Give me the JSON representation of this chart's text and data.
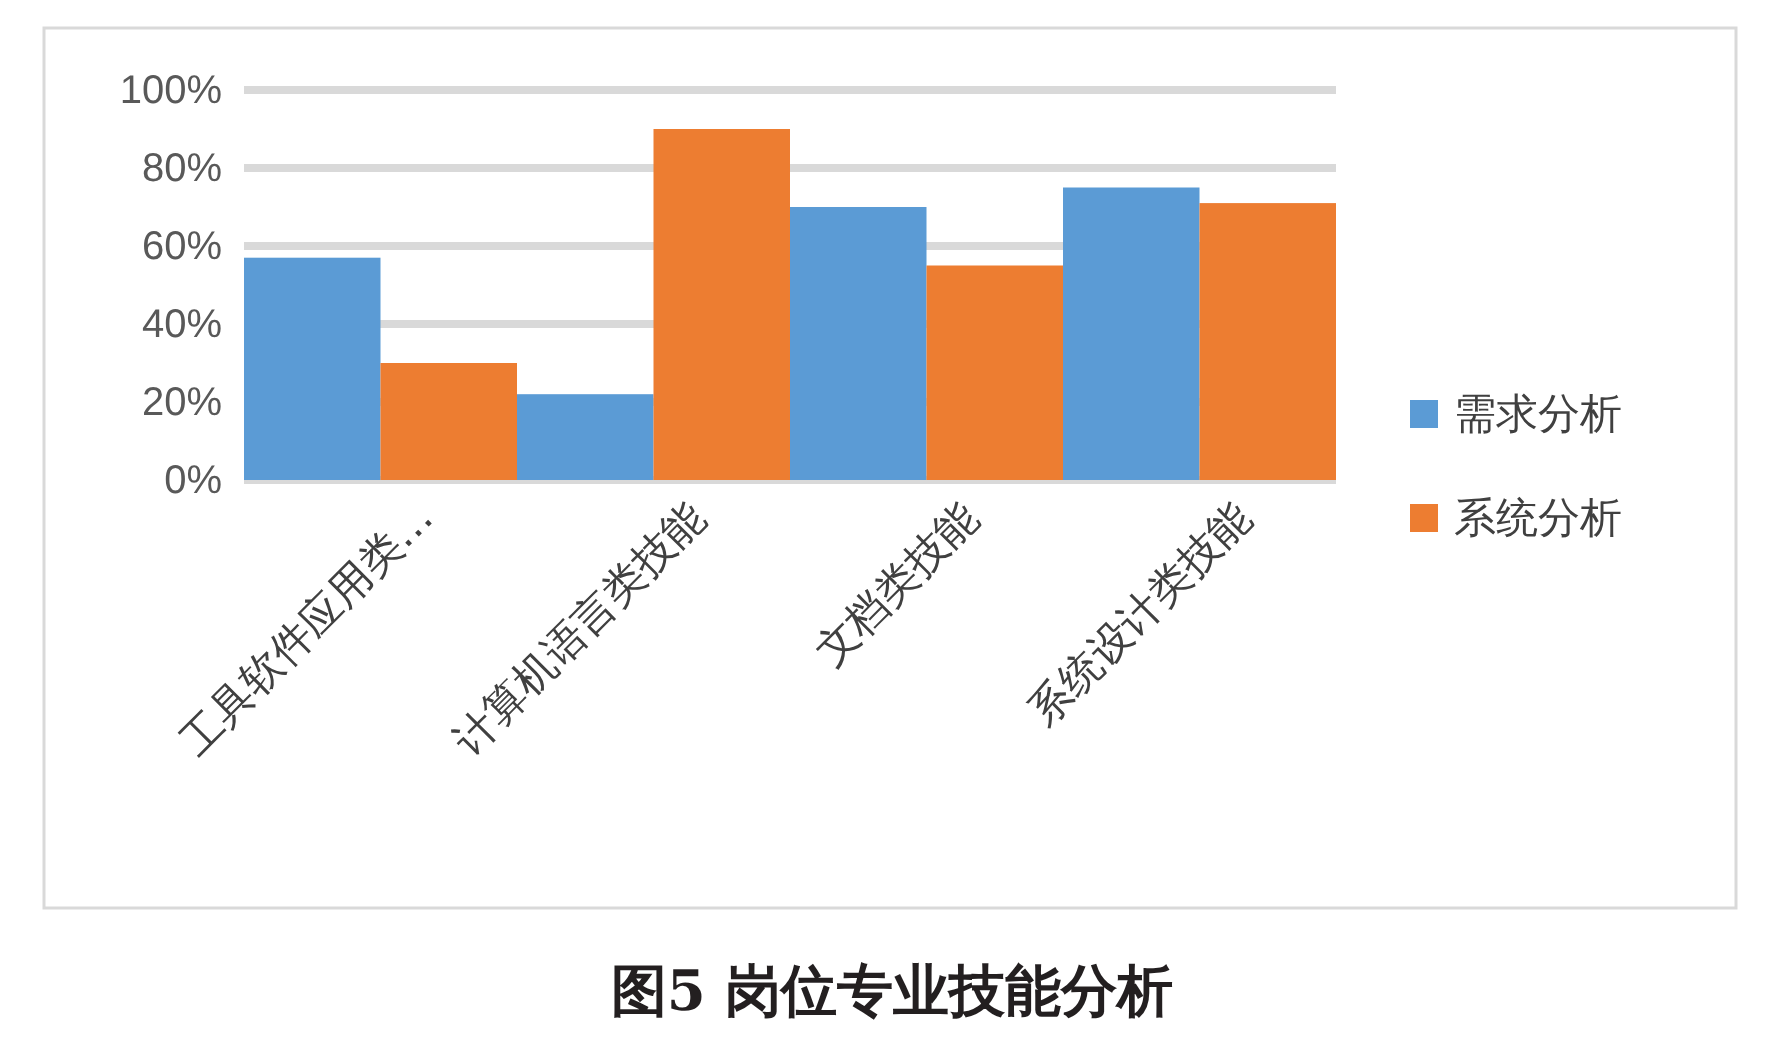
{
  "chart_data": {
    "type": "bar",
    "title": "图5 岗位专业技能分析",
    "categories": [
      "工具软件应用类…",
      "计算机语言类技能",
      "文档类技能",
      "系统设计类技能"
    ],
    "series": [
      {
        "name": "需求分析",
        "color": "#5b9bd5",
        "values": [
          57,
          22,
          70,
          75
        ]
      },
      {
        "name": "系统分析",
        "color": "#ed7d31",
        "values": [
          30,
          90,
          55,
          71
        ]
      }
    ],
    "ylim": [
      0,
      100
    ],
    "yticks": [
      {
        "value": 0,
        "label": "0%"
      },
      {
        "value": 20,
        "label": "20%"
      },
      {
        "value": 40,
        "label": "40%"
      },
      {
        "value": 60,
        "label": "60%"
      },
      {
        "value": 80,
        "label": "80%"
      },
      {
        "value": 100,
        "label": "100%"
      }
    ],
    "grid": "y",
    "legend": "right"
  }
}
